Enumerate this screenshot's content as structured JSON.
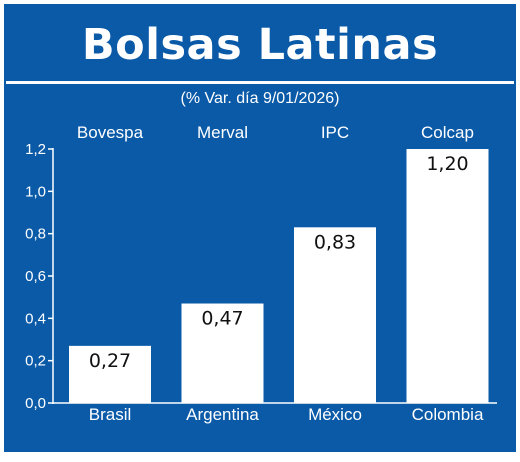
{
  "header": {
    "title": "Bolsas Latinas",
    "subtitle": "(% Var. día 9/01/2026)"
  },
  "colors": {
    "background": "#0a5aa8",
    "bars": "#ffffff",
    "text": "#ffffff",
    "value_text": "#111111"
  },
  "chart_data": {
    "type": "bar",
    "title": "Bolsas Latinas",
    "subtitle": "(% Var. día 9/01/2026)",
    "categories": [
      "Brasil",
      "Argentina",
      "México",
      "Colombia"
    ],
    "index_names": [
      "Bovespa",
      "Merval",
      "IPC",
      "Colcap"
    ],
    "values": [
      0.27,
      0.47,
      0.83,
      1.2
    ],
    "value_labels": [
      "0,27",
      "0,47",
      "0,83",
      "1,20"
    ],
    "yticks": [
      "0,0",
      "0,2",
      "0,4",
      "0,6",
      "0,8",
      "1,0",
      "1,2"
    ],
    "ylim": [
      0,
      1.2
    ],
    "grid": false,
    "xlabel": "",
    "ylabel": ""
  }
}
